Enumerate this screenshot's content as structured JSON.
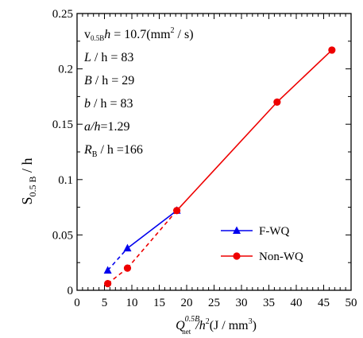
{
  "chart_data": {
    "type": "line",
    "ylabel": {
      "main": "S",
      "sub": "0.5 B",
      "tail": " / h"
    },
    "xlabel": {
      "q": "Q",
      "sup": "0.5B",
      "sub": "net",
      "mid": "/h",
      "sup2": "2",
      "tail": "(J / mm",
      "sup3": "3",
      "end": ")"
    },
    "xlim": [
      0,
      50
    ],
    "ylim": [
      0,
      0.25
    ],
    "x_ticks": [
      "0",
      "5",
      "10",
      "15",
      "20",
      "25",
      "30",
      "35",
      "40",
      "45",
      "50"
    ],
    "y_ticks": [
      "0",
      "0.05",
      "0.1",
      "0.15",
      "0.2",
      "0.25"
    ],
    "series": [
      {
        "name": "F-WQ",
        "color": "#0000ee",
        "marker": "triangle",
        "x": [
          5.6,
          9.2,
          18.2
        ],
        "y": [
          0.018,
          0.038,
          0.072
        ],
        "dashed_segments": 1
      },
      {
        "name": "Non-WQ",
        "color": "#ee0000",
        "marker": "circle",
        "x": [
          5.6,
          9.2,
          18.2,
          36.5,
          46.5
        ],
        "y": [
          0.006,
          0.02,
          0.072,
          0.17,
          0.217
        ],
        "dashed_segments": 2
      }
    ],
    "annotations": [
      {
        "pre": "v",
        "sub": "0.5B",
        "it": "h",
        "rest": " = 10.7(mm",
        "sup": "2",
        "end": " / s)"
      },
      {
        "it": "L",
        "rest": " / h = 83"
      },
      {
        "it": "B",
        "rest": " / h = 29"
      },
      {
        "it": "b",
        "rest": " / h = 83"
      },
      {
        "it": "a/h",
        "rest": "=1.29"
      },
      {
        "it": "R",
        "sub": "B",
        "rest": " / h =166"
      }
    ],
    "legend_position": "lower-right",
    "grid": false
  }
}
